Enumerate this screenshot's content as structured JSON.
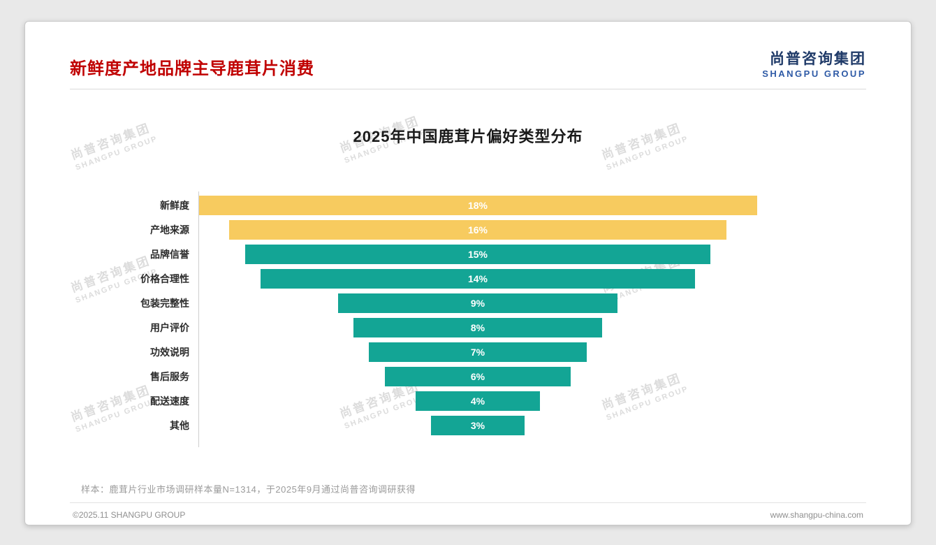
{
  "header": {
    "title": "新鲜度产地品牌主导鹿茸片消费",
    "logo_cn": "尚普咨询集团",
    "logo_en": "SHANGPU GROUP"
  },
  "chart_data": {
    "type": "bar",
    "subtype": "horizontal-centered-funnel",
    "title": "2025年中国鹿茸片偏好类型分布",
    "categories": [
      "新鲜度",
      "产地来源",
      "品牌信誉",
      "价格合理性",
      "包装完整性",
      "用户评价",
      "功效说明",
      "售后服务",
      "配送速度",
      "其他"
    ],
    "values": [
      18,
      16,
      15,
      14,
      9,
      8,
      7,
      6,
      4,
      3
    ],
    "value_labels": [
      "18%",
      "16%",
      "15%",
      "14%",
      "9%",
      "8%",
      "7%",
      "6%",
      "4%",
      "3%"
    ],
    "unit": "%",
    "max_value": 18,
    "bar_colors": [
      "#F7CB5F",
      "#F7CB5F",
      "#13A595",
      "#13A595",
      "#13A595",
      "#13A595",
      "#13A595",
      "#13A595",
      "#13A595",
      "#13A595"
    ],
    "highlight_color": "#F7CB5F",
    "base_color": "#13A595",
    "grid": "off",
    "legend": "none"
  },
  "note": "样本：鹿茸片行业市场调研样本量N=1314，于2025年9月通过尚普咨询调研获得",
  "footer": {
    "left": "©2025.11 SHANGPU GROUP",
    "right": "www.shangpu-china.com"
  },
  "watermark": {
    "cn": "尚普咨询集团",
    "en": "SHANGPU GROUP"
  },
  "colors": {
    "title_red": "#C00000",
    "logo_blue": "#1F3A68",
    "logo_blue_light": "#2E5AA6"
  }
}
